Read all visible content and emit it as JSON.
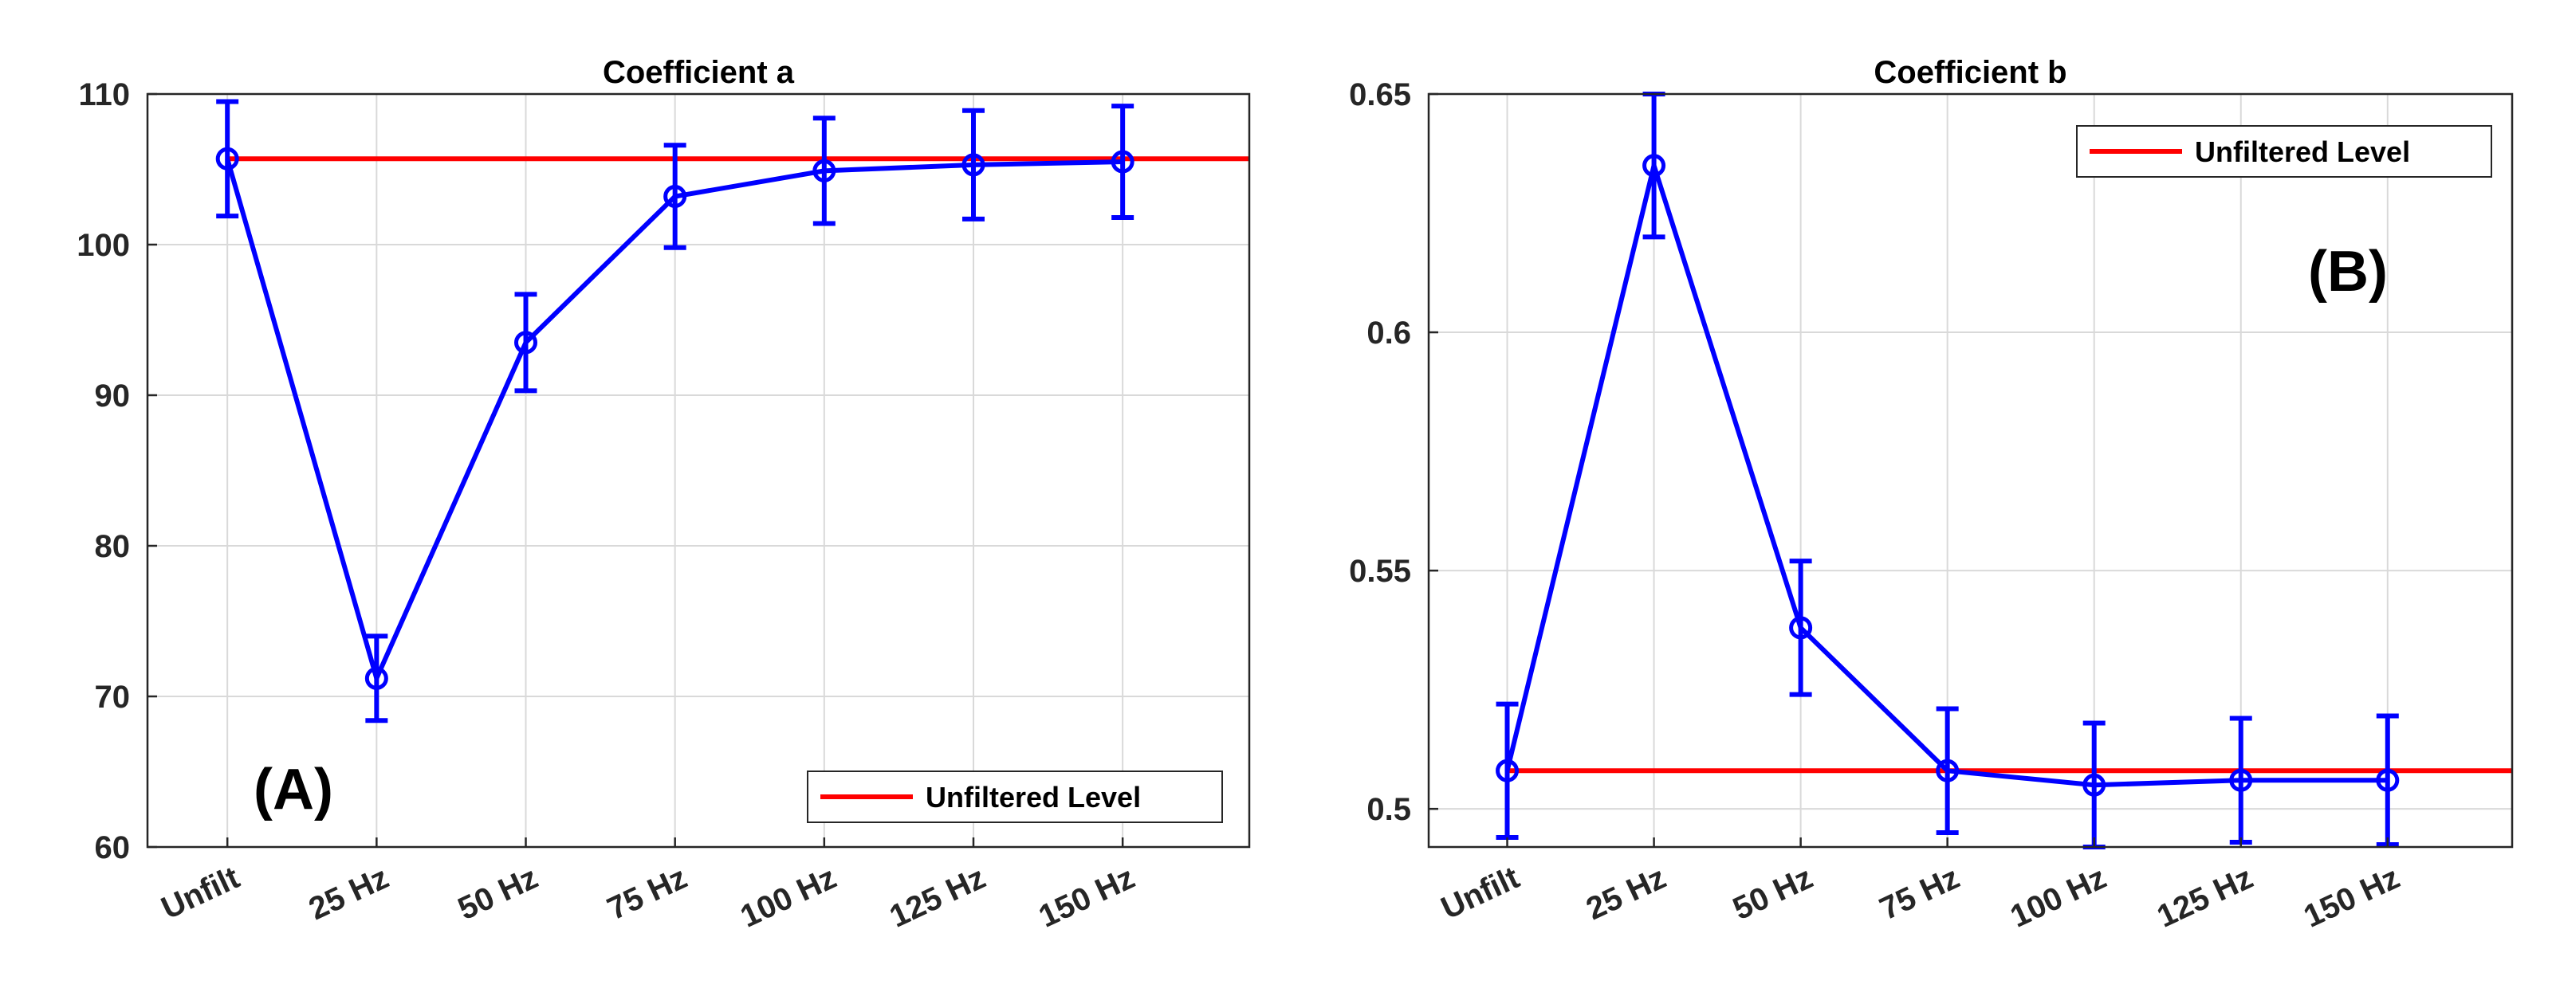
{
  "chart_data": [
    {
      "type": "line",
      "title": "Coefficient a",
      "panel_label": "(A)",
      "categories": [
        "Unfilt",
        "25 Hz",
        "50 Hz",
        "75 Hz",
        "100 Hz",
        "125 Hz",
        "150 Hz"
      ],
      "ylim": [
        60,
        110
      ],
      "yticks": [
        60,
        70,
        80,
        90,
        100,
        110
      ],
      "ytick_labels": [
        "60",
        "70",
        "80",
        "90",
        "100",
        "110"
      ],
      "grid": true,
      "legend": {
        "label": "Unfiltered Level",
        "position": "bottom-right"
      },
      "series": [
        {
          "values": [
            105.7,
            71.2,
            93.5,
            103.2,
            104.9,
            105.3,
            105.5
          ],
          "error": [
            3.8,
            2.8,
            3.2,
            3.4,
            3.5,
            3.6,
            3.7
          ],
          "color": "#0000ff",
          "marker": "circle"
        }
      ],
      "reference_line": {
        "value": 105.7,
        "color": "#ff0000"
      }
    },
    {
      "type": "line",
      "title": "Coefficient b",
      "panel_label": "(B)",
      "categories": [
        "Unfilt",
        "25 Hz",
        "50 Hz",
        "75 Hz",
        "100 Hz",
        "125 Hz",
        "150 Hz"
      ],
      "ylim": [
        0.492,
        0.65
      ],
      "yticks": [
        0.5,
        0.55,
        0.6,
        0.65
      ],
      "ytick_labels": [
        "0.5",
        "0.55",
        "0.6",
        "0.65"
      ],
      "grid": true,
      "legend": {
        "label": "Unfiltered Level",
        "position": "top-right"
      },
      "series": [
        {
          "values": [
            0.508,
            0.635,
            0.538,
            0.508,
            0.505,
            0.506,
            0.506
          ],
          "error": [
            0.014,
            0.015,
            0.014,
            0.013,
            0.013,
            0.013,
            0.0135
          ],
          "color": "#0000ff",
          "marker": "circle"
        }
      ],
      "reference_line": {
        "value": 0.508,
        "color": "#ff0000"
      }
    }
  ]
}
